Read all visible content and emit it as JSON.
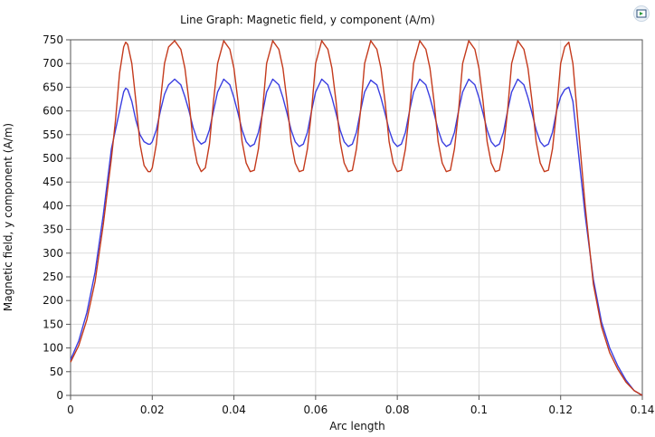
{
  "chart_data": {
    "type": "line",
    "title": "Line Graph: Magnetic field, y component (A/m)",
    "xlabel": "Arc length",
    "ylabel": "Magnetic field, y component (A/m)",
    "xlim": [
      0,
      0.14
    ],
    "ylim": [
      0,
      750
    ],
    "xticks": [
      0,
      0.02,
      0.04,
      0.06,
      0.08,
      0.1,
      0.12,
      0.14
    ],
    "xtick_labels": [
      "0",
      "0.02",
      "0.04",
      "0.06",
      "0.08",
      "0.1",
      "0.12",
      "0.14"
    ],
    "yticks": [
      0,
      50,
      100,
      150,
      200,
      250,
      300,
      350,
      400,
      450,
      500,
      550,
      600,
      650,
      700,
      750
    ],
    "ytick_labels": [
      "0",
      "50",
      "100",
      "150",
      "200",
      "250",
      "300",
      "350",
      "400",
      "450",
      "500",
      "550",
      "600",
      "650",
      "700",
      "750"
    ],
    "grid": true,
    "series": [
      {
        "color": "#3a3ee0",
        "x": [
          0,
          0.002,
          0.004,
          0.006,
          0.008,
          0.01,
          0.011,
          0.012,
          0.013,
          0.0135,
          0.014,
          0.015,
          0.016,
          0.017,
          0.018,
          0.019,
          0.0195,
          0.02,
          0.021,
          0.022,
          0.023,
          0.024,
          0.0255,
          0.027,
          0.028,
          0.029,
          0.03,
          0.031,
          0.032,
          0.033,
          0.034,
          0.035,
          0.036,
          0.0375,
          0.039,
          0.04,
          0.041,
          0.042,
          0.043,
          0.044,
          0.045,
          0.046,
          0.047,
          0.048,
          0.0495,
          0.051,
          0.052,
          0.053,
          0.054,
          0.055,
          0.056,
          0.057,
          0.058,
          0.059,
          0.06,
          0.0615,
          0.063,
          0.064,
          0.065,
          0.066,
          0.067,
          0.068,
          0.069,
          0.07,
          0.071,
          0.072,
          0.0735,
          0.075,
          0.076,
          0.077,
          0.078,
          0.079,
          0.08,
          0.081,
          0.082,
          0.083,
          0.084,
          0.0855,
          0.087,
          0.088,
          0.089,
          0.09,
          0.091,
          0.092,
          0.093,
          0.094,
          0.095,
          0.096,
          0.0975,
          0.099,
          0.1,
          0.101,
          0.102,
          0.103,
          0.104,
          0.105,
          0.106,
          0.107,
          0.108,
          0.1095,
          0.111,
          0.112,
          0.113,
          0.114,
          0.115,
          0.116,
          0.117,
          0.118,
          0.119,
          0.12,
          0.121,
          0.122,
          0.123,
          0.124,
          0.126,
          0.128,
          0.13,
          0.132,
          0.134,
          0.136,
          0.138,
          0.14
        ],
        "y": [
          75,
          115,
          175,
          260,
          380,
          520,
          560,
          600,
          640,
          648,
          645,
          620,
          580,
          550,
          535,
          530,
          530,
          535,
          560,
          600,
          635,
          655,
          667,
          655,
          630,
          600,
          565,
          540,
          530,
          535,
          560,
          600,
          640,
          667,
          655,
          628,
          595,
          560,
          535,
          525,
          530,
          555,
          595,
          640,
          667,
          655,
          628,
          595,
          560,
          535,
          525,
          530,
          555,
          600,
          640,
          667,
          655,
          628,
          595,
          560,
          535,
          525,
          530,
          555,
          600,
          640,
          665,
          655,
          628,
          595,
          560,
          535,
          525,
          530,
          555,
          600,
          640,
          667,
          655,
          628,
          595,
          560,
          535,
          525,
          530,
          555,
          600,
          640,
          667,
          655,
          628,
          595,
          560,
          535,
          525,
          530,
          555,
          600,
          640,
          667,
          655,
          628,
          595,
          560,
          535,
          525,
          530,
          555,
          600,
          630,
          645,
          650,
          620,
          540,
          380,
          245,
          155,
          100,
          62,
          32,
          10,
          0
        ]
      },
      {
        "color": "#c43a1c",
        "x": [
          0,
          0.002,
          0.004,
          0.006,
          0.008,
          0.01,
          0.011,
          0.012,
          0.013,
          0.0135,
          0.014,
          0.015,
          0.016,
          0.017,
          0.018,
          0.019,
          0.0195,
          0.02,
          0.021,
          0.022,
          0.023,
          0.024,
          0.0255,
          0.027,
          0.028,
          0.029,
          0.03,
          0.031,
          0.032,
          0.033,
          0.034,
          0.035,
          0.036,
          0.0375,
          0.039,
          0.04,
          0.041,
          0.042,
          0.043,
          0.044,
          0.045,
          0.046,
          0.047,
          0.048,
          0.0495,
          0.051,
          0.052,
          0.053,
          0.054,
          0.055,
          0.056,
          0.057,
          0.058,
          0.059,
          0.06,
          0.0615,
          0.063,
          0.064,
          0.065,
          0.066,
          0.067,
          0.068,
          0.069,
          0.07,
          0.071,
          0.072,
          0.0735,
          0.075,
          0.076,
          0.077,
          0.078,
          0.079,
          0.08,
          0.081,
          0.082,
          0.083,
          0.084,
          0.0855,
          0.087,
          0.088,
          0.089,
          0.09,
          0.091,
          0.092,
          0.093,
          0.094,
          0.095,
          0.096,
          0.0975,
          0.099,
          0.1,
          0.101,
          0.102,
          0.103,
          0.104,
          0.105,
          0.106,
          0.107,
          0.108,
          0.1095,
          0.111,
          0.112,
          0.113,
          0.114,
          0.115,
          0.116,
          0.117,
          0.118,
          0.119,
          0.12,
          0.121,
          0.122,
          0.123,
          0.124,
          0.126,
          0.128,
          0.13,
          0.132,
          0.134,
          0.136,
          0.138,
          0.14
        ],
        "y": [
          70,
          105,
          160,
          240,
          360,
          500,
          580,
          680,
          735,
          745,
          740,
          700,
          620,
          530,
          485,
          472,
          472,
          480,
          530,
          620,
          700,
          735,
          748,
          730,
          690,
          620,
          535,
          490,
          472,
          480,
          530,
          620,
          700,
          748,
          730,
          690,
          620,
          535,
          490,
          472,
          475,
          520,
          600,
          700,
          748,
          730,
          690,
          620,
          535,
          490,
          472,
          475,
          520,
          600,
          700,
          748,
          730,
          690,
          620,
          535,
          490,
          472,
          475,
          520,
          600,
          700,
          748,
          730,
          690,
          620,
          535,
          490,
          472,
          475,
          520,
          600,
          700,
          748,
          730,
          690,
          620,
          535,
          490,
          472,
          475,
          520,
          600,
          700,
          748,
          730,
          690,
          620,
          535,
          490,
          472,
          475,
          520,
          600,
          700,
          748,
          730,
          690,
          620,
          535,
          490,
          472,
          475,
          520,
          600,
          700,
          735,
          745,
          700,
          600,
          400,
          235,
          145,
          90,
          55,
          28,
          10,
          0
        ]
      }
    ]
  },
  "zoom_icon": "zoom-extents-icon"
}
